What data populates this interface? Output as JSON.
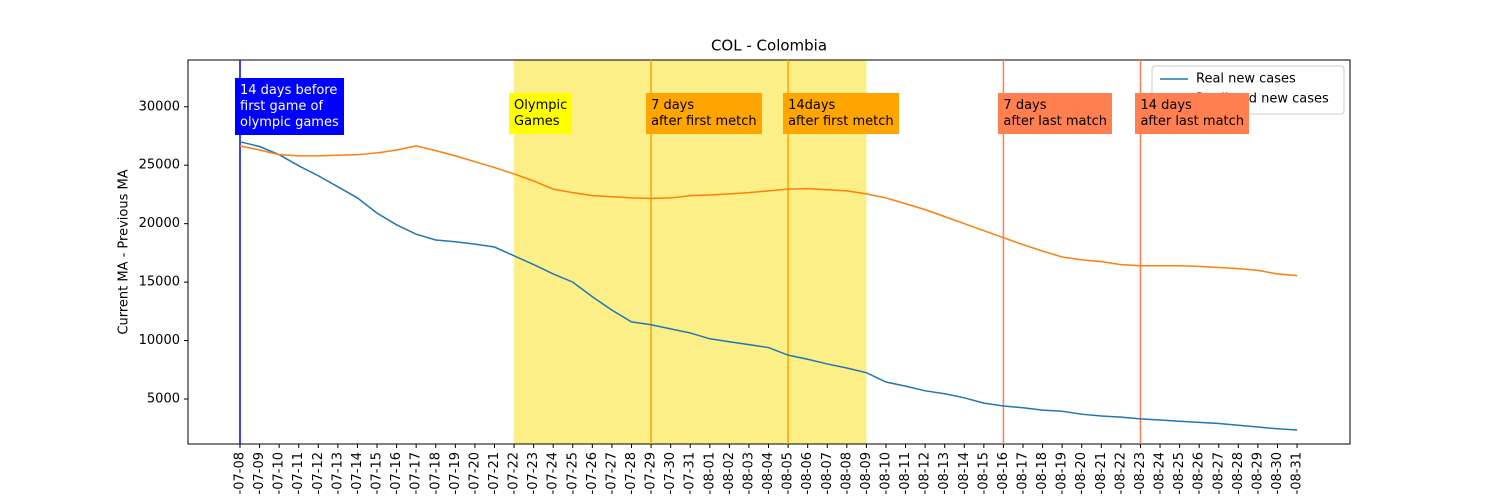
{
  "chart_data": {
    "type": "line",
    "title": "COL - Colombia",
    "y_label": "Current MA - Previous MA",
    "categories": [
      "-07-08",
      "-07-09",
      "-07-10",
      "-07-11",
      "-07-12",
      "-07-13",
      "-07-14",
      "-07-15",
      "-07-16",
      "-07-17",
      "-07-18",
      "-07-19",
      "-07-20",
      "-07-21",
      "-07-22",
      "-07-23",
      "-07-24",
      "-07-25",
      "-07-26",
      "-07-27",
      "-07-28",
      "-07-29",
      "-07-30",
      "-07-31",
      "-08-01",
      "-08-02",
      "-08-03",
      "-08-04",
      "-08-05",
      "-08-06",
      "-08-07",
      "-08-08",
      "-08-09",
      "-08-10",
      "-08-11",
      "-08-12",
      "-08-13",
      "-08-14",
      "-08-15",
      "-08-16",
      "-08-17",
      "-08-18",
      "-08-19",
      "-08-20",
      "-08-21",
      "-08-22",
      "-08-23",
      "-08-24",
      "-08-25",
      "-08-26",
      "-08-27",
      "-08-28",
      "-08-29",
      "-08-30",
      "-08-31"
    ],
    "series": [
      {
        "name": "Real new cases",
        "color": "#1f77b4",
        "values": [
          27000,
          26600,
          25900,
          24950,
          24100,
          23150,
          22200,
          20900,
          19900,
          19100,
          18600,
          18450,
          18250,
          18000,
          17250,
          16500,
          15700,
          15000,
          13750,
          12600,
          11600,
          11350,
          11000,
          10650,
          10150,
          9900,
          9650,
          9400,
          8750,
          8400,
          8000,
          7650,
          7250,
          6450,
          6100,
          5700,
          5450,
          5100,
          4650,
          4400,
          4250,
          4050,
          3950,
          3700,
          3550,
          3450,
          3300,
          3200,
          3100,
          3000,
          2900,
          2750,
          2600,
          2450,
          2350
        ]
      },
      {
        "name": "Predicted new cases",
        "color": "#ff7f0e",
        "values": [
          26650,
          26300,
          25900,
          25800,
          25800,
          25850,
          25900,
          26050,
          26300,
          26650,
          26250,
          25800,
          25300,
          24800,
          24250,
          23650,
          22950,
          22650,
          22400,
          22300,
          22200,
          22150,
          22200,
          22400,
          22450,
          22550,
          22650,
          22800,
          22950,
          23000,
          22900,
          22800,
          22550,
          22200,
          21700,
          21200,
          20600,
          20000,
          19400,
          18800,
          18200,
          17650,
          17150,
          16900,
          16750,
          16500,
          16400,
          16400,
          16400,
          16350,
          16250,
          16150,
          16000,
          15700,
          15550
        ]
      }
    ],
    "ylim": [
      1150,
      34000
    ],
    "yticks": [
      5000,
      10000,
      15000,
      20000,
      25000,
      30000
    ],
    "legend": "upper right",
    "span": {
      "from": "-07-22",
      "to": "-08-09",
      "color": "#fcef87"
    },
    "annotations": [
      {
        "text": "14 days before\nfirst game of\nolympic games",
        "x": "-07-08",
        "color": "#0000ff",
        "text_color": "#ffffff",
        "line": true
      },
      {
        "text": "Olympic\nGames",
        "x": "-07-22",
        "color": "#ffff00",
        "text_color": "#000000",
        "line": false
      },
      {
        "text": "7 days\nafter first metch",
        "x": "-07-29",
        "color": "#ffa500",
        "text_color": "#000000",
        "line": true
      },
      {
        "text": "14days\nafter first metch",
        "x": "-08-05",
        "color": "#ffa500",
        "text_color": "#000000",
        "line": true
      },
      {
        "text": "7 days\nafter last match",
        "x": "-08-16",
        "color": "#ff7f50",
        "text_color": "#000000",
        "line": true
      },
      {
        "text": "14 days\nafter last match",
        "x": "-08-23",
        "color": "#ff7f50",
        "text_color": "#000000",
        "line": true
      }
    ]
  }
}
